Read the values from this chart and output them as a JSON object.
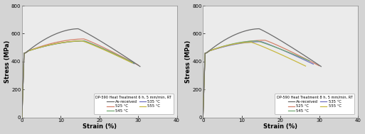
{
  "left_legend_title": "DP-590 Heat Treatment 6 h, 5 mm/min, RT",
  "right_legend_title": "DP-590 Heat Treatment 8 h, 5 mm/min, RT",
  "xlabel": "Strain (%)",
  "ylabel": "Stress (MPa)",
  "xlim": [
    0,
    40
  ],
  "ylim": [
    0,
    800
  ],
  "xticks": [
    0,
    10,
    20,
    30,
    40
  ],
  "yticks": [
    0,
    200,
    400,
    600,
    800
  ],
  "color_as_received": "#6b6b6b",
  "color_525": "#d4826a",
  "color_535": "#7070c0",
  "color_545": "#70a870",
  "color_555": "#c8b840",
  "fig_facecolor": "#d4d4d4",
  "ax_facecolor": "#ebebeb",
  "figsize": [
    5.13,
    1.89
  ],
  "dpi": 100,
  "left_curves": {
    "as_received": [
      14.5,
      635,
      30.5,
      365
    ],
    "525": [
      16.0,
      562,
      30.0,
      375
    ],
    "535": [
      16.0,
      548,
      29.0,
      385
    ],
    "545": [
      16.0,
      548,
      29.0,
      388
    ],
    "555": [
      15.5,
      548,
      28.5,
      390
    ]
  },
  "right_curves": {
    "as_received": [
      14.5,
      635,
      30.5,
      365
    ],
    "525": [
      16.0,
      553,
      30.0,
      370
    ],
    "535": [
      15.0,
      543,
      28.5,
      382
    ],
    "545": [
      14.0,
      548,
      27.5,
      405
    ],
    "555": [
      12.5,
      538,
      26.5,
      368
    ]
  }
}
